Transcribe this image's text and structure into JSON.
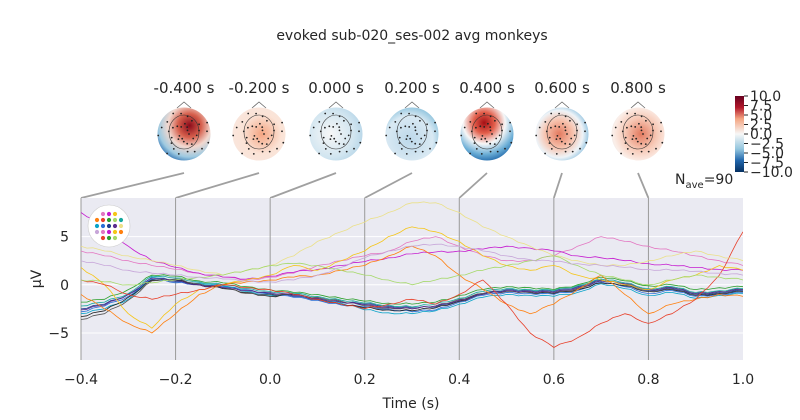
{
  "title": "evoked sub-020_ses-002 avg monkeys",
  "nave": {
    "label": "N",
    "sub": "ave",
    "value": "=90"
  },
  "chart_data": {
    "type": "line",
    "xlabel": "Time (s)",
    "ylabel": "µV",
    "xlim": [
      -0.4,
      1.0
    ],
    "ylim": [
      -7.8,
      9.0
    ],
    "xticks": [
      "−0.4",
      "−0.2",
      "0.0",
      "0.2",
      "0.4",
      "0.6",
      "0.8",
      "1.0"
    ],
    "xtick_values": [
      -0.4,
      -0.2,
      0.0,
      0.2,
      0.4,
      0.6,
      0.8,
      1.0
    ],
    "yticks": [
      "−5",
      "0",
      "5"
    ],
    "ytick_values": [
      -5,
      0,
      5
    ],
    "grid": true,
    "topomap_times": [
      -0.4,
      -0.2,
      0.0,
      0.2,
      0.4,
      0.6,
      0.8
    ],
    "topomap_labels": [
      "-0.400 s",
      "-0.200 s",
      "0.000 s",
      "0.200 s",
      "0.400 s",
      "0.600 s",
      "0.800 s"
    ],
    "colorbar": {
      "ticks": [
        "10.0",
        "7.5",
        "5.0",
        "2.5",
        "0.0",
        "−2.5",
        "−5.0",
        "−7.5",
        "−10.0"
      ],
      "tick_values": [
        10.0,
        7.5,
        5.0,
        2.5,
        0.0,
        -2.5,
        -5.0,
        -7.5,
        -10.0
      ],
      "range": [
        -10.0,
        10.0
      ],
      "colormap": "RdBu_r"
    },
    "x": [
      -0.4,
      -0.35,
      -0.3,
      -0.25,
      -0.2,
      -0.15,
      -0.1,
      -0.05,
      0.0,
      0.05,
      0.1,
      0.15,
      0.2,
      0.25,
      0.3,
      0.35,
      0.4,
      0.45,
      0.5,
      0.55,
      0.6,
      0.65,
      0.7,
      0.75,
      0.8,
      0.85,
      0.9,
      0.95,
      1.0
    ],
    "series": [
      {
        "color": "#1f3f8f",
        "values": [
          -2.5,
          -2.0,
          -1.0,
          0.5,
          0.3,
          0.0,
          -0.3,
          -0.6,
          -0.9,
          -1.2,
          -1.5,
          -1.8,
          -2.0,
          -2.2,
          -2.4,
          -2.3,
          -1.6,
          -0.9,
          -0.5,
          -0.6,
          -0.7,
          -0.2,
          0.5,
          0.0,
          -0.6,
          -0.4,
          -1.0,
          -0.8,
          -0.6
        ]
      },
      {
        "color": "#2a6fd6",
        "values": [
          -2.8,
          -2.2,
          -1.2,
          0.6,
          0.2,
          0.1,
          -0.2,
          -0.5,
          -1.0,
          -1.3,
          -1.6,
          -2.1,
          -2.3,
          -2.5,
          -2.8,
          -2.6,
          -1.8,
          -1.1,
          -0.8,
          -0.9,
          -1.0,
          -0.6,
          0.3,
          -0.2,
          -0.9,
          -0.6,
          -1.2,
          -1.0,
          -0.8
        ]
      },
      {
        "color": "#0aa3c8",
        "values": [
          -3.0,
          -2.5,
          -1.5,
          0.8,
          0.4,
          0.2,
          -0.1,
          -0.7,
          -1.1,
          -1.0,
          -1.4,
          -1.9,
          -2.6,
          -2.9,
          -3.0,
          -2.7,
          -2.0,
          -1.3,
          -1.0,
          -1.1,
          -1.2,
          -0.8,
          0.1,
          -0.4,
          -1.1,
          -0.8,
          -1.4,
          -1.1,
          -0.9
        ]
      },
      {
        "color": "#222222",
        "values": [
          -3.3,
          -2.7,
          -1.3,
          0.5,
          0.5,
          0.0,
          -0.4,
          -0.8,
          -1.2,
          -1.0,
          -1.5,
          -2.0,
          -2.4,
          -2.6,
          -2.7,
          -2.4,
          -1.7,
          -1.0,
          -0.6,
          -0.8,
          -0.9,
          -0.5,
          0.2,
          -0.1,
          -0.7,
          -0.5,
          -1.1,
          -0.9,
          -0.7
        ]
      },
      {
        "color": "#555555",
        "values": [
          -3.6,
          -3.0,
          -1.6,
          0.4,
          0.6,
          0.1,
          -0.3,
          -0.9,
          -1.0,
          -1.1,
          -1.3,
          -1.7,
          -2.2,
          -2.4,
          -2.5,
          -2.2,
          -1.5,
          -0.9,
          -0.7,
          -0.7,
          -0.8,
          -0.4,
          0.4,
          0.1,
          -0.5,
          -0.3,
          -0.9,
          -0.7,
          -0.5
        ]
      },
      {
        "color": "#13a89e",
        "values": [
          -2.2,
          -1.8,
          -0.9,
          0.9,
          0.7,
          0.3,
          0.0,
          -0.4,
          -0.7,
          -0.9,
          -1.2,
          -1.6,
          -1.9,
          -2.1,
          -2.3,
          -2.0,
          -1.4,
          -0.7,
          -0.4,
          -0.5,
          -0.6,
          -0.1,
          0.6,
          0.2,
          -0.4,
          -0.2,
          -0.8,
          -0.6,
          -0.4
        ]
      },
      {
        "color": "#2ca02c",
        "values": [
          -1.8,
          -1.5,
          -0.5,
          1.0,
          0.9,
          0.4,
          0.2,
          -0.2,
          -0.5,
          -0.8,
          -1.0,
          -1.4,
          -1.7,
          -1.9,
          -2.0,
          -1.8,
          -1.1,
          -0.5,
          -0.2,
          -0.3,
          -0.5,
          0.0,
          0.8,
          0.4,
          -0.1,
          0.0,
          -0.5,
          -0.3,
          -0.2
        ]
      },
      {
        "color": "#5b2d8f",
        "values": [
          -2.6,
          -2.1,
          -1.0,
          0.7,
          0.4,
          0.0,
          -0.3,
          -0.6,
          -0.8,
          -1.1,
          -1.4,
          -1.8,
          -2.1,
          -2.3,
          -2.5,
          -2.2,
          -1.6,
          -1.0,
          -0.6,
          -0.7,
          -0.8,
          -0.3,
          0.4,
          0.1,
          -0.5,
          -0.3,
          -0.9,
          -0.7,
          -0.5
        ]
      },
      {
        "color": "#e377c2",
        "values": [
          3.5,
          3.0,
          2.5,
          2.0,
          1.6,
          1.2,
          0.8,
          0.5,
          0.8,
          1.2,
          2.0,
          2.5,
          3.0,
          3.5,
          4.5,
          5.0,
          4.0,
          3.0,
          2.5,
          2.5,
          3.0,
          4.0,
          5.0,
          4.5,
          4.0,
          3.5,
          3.0,
          2.5,
          2.0
        ]
      },
      {
        "color": "#c51bd0",
        "values": [
          7.5,
          6.0,
          4.0,
          2.5,
          1.8,
          1.2,
          0.8,
          0.6,
          0.9,
          1.3,
          1.6,
          2.0,
          2.4,
          2.8,
          3.2,
          3.4,
          3.5,
          3.7,
          4.0,
          3.8,
          3.5,
          3.0,
          2.8,
          2.5,
          2.2,
          2.0,
          1.8,
          1.6,
          1.5
        ]
      },
      {
        "color": "#f5c518",
        "values": [
          1.8,
          0.0,
          -3.0,
          -4.5,
          -2.0,
          -0.5,
          0.0,
          0.5,
          1.0,
          2.0,
          1.5,
          2.5,
          3.5,
          5.0,
          6.0,
          5.5,
          4.5,
          3.0,
          2.0,
          1.5,
          2.0,
          1.0,
          0.5,
          0.0,
          -0.5,
          0.5,
          1.0,
          2.0,
          1.5
        ]
      },
      {
        "color": "#ff7f0e",
        "values": [
          -1.0,
          -2.5,
          -4.0,
          -5.0,
          -3.0,
          -1.0,
          0.0,
          0.3,
          0.5,
          0.8,
          1.0,
          1.5,
          2.0,
          3.0,
          4.0,
          3.0,
          1.0,
          -0.5,
          -2.0,
          -3.0,
          -2.0,
          -0.5,
          1.0,
          -1.0,
          -3.0,
          -2.0,
          -1.5,
          -1.0,
          -1.2
        ]
      },
      {
        "color": "#e8402a",
        "values": [
          0.5,
          0.0,
          -1.0,
          -1.5,
          -1.0,
          -0.5,
          0.0,
          -0.3,
          -0.5,
          -1.0,
          -1.5,
          -2.0,
          -2.5,
          -2.0,
          -1.5,
          -2.0,
          -1.0,
          0.5,
          -2.0,
          -5.0,
          -6.5,
          -5.5,
          -4.0,
          -3.0,
          -4.0,
          -3.0,
          -1.5,
          1.0,
          5.5
        ]
      },
      {
        "color": "#ebe089",
        "values": [
          4.0,
          3.5,
          3.0,
          2.5,
          2.0,
          1.5,
          1.0,
          1.5,
          2.0,
          3.0,
          4.5,
          5.5,
          6.5,
          7.5,
          8.5,
          8.5,
          7.5,
          6.0,
          5.0,
          4.0,
          3.0,
          2.5,
          2.0,
          2.0,
          2.5,
          3.0,
          3.5,
          3.0,
          2.5
        ]
      },
      {
        "color": "#a6d96a",
        "values": [
          0.5,
          0.3,
          0.0,
          0.2,
          0.5,
          0.8,
          1.0,
          1.5,
          2.0,
          2.2,
          2.0,
          1.5,
          1.0,
          0.5,
          0.0,
          0.5,
          1.0,
          1.5,
          2.0,
          2.5,
          3.0,
          2.0,
          1.0,
          0.5,
          0.0,
          0.5,
          1.0,
          0.8,
          0.5
        ]
      },
      {
        "color": "#c7a6d9",
        "values": [
          2.5,
          2.0,
          1.5,
          1.2,
          1.0,
          0.8,
          0.6,
          0.4,
          0.3,
          0.5,
          1.0,
          1.8,
          2.8,
          3.5,
          4.0,
          4.2,
          4.0,
          3.5,
          3.0,
          2.6,
          2.4,
          2.2,
          2.0,
          1.8,
          1.6,
          1.5,
          1.4,
          1.2,
          1.0
        ]
      }
    ]
  },
  "sensor_legend_colors": [
    "#e377c2",
    "#c51bd0",
    "#f5c518",
    "#ff7f0e",
    "#e8402a",
    "#2ca02c",
    "#a6d96a",
    "#13a89e",
    "#0aa3c8",
    "#2a6fd6",
    "#1f3f8f",
    "#5b2d8f",
    "#ebe089",
    "#c7a6d9"
  ]
}
